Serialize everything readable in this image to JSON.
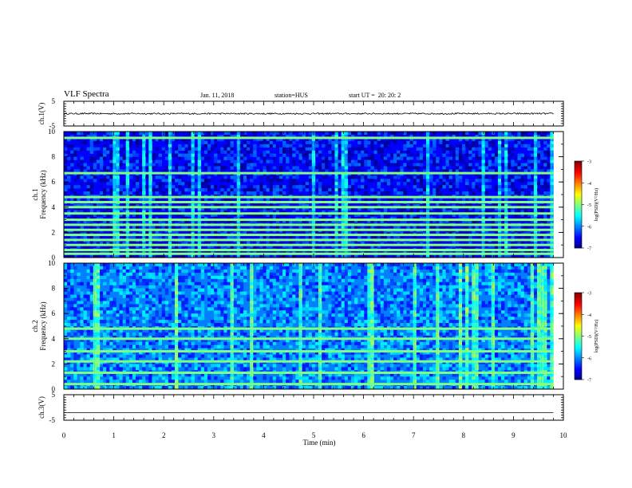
{
  "header": {
    "title": "VLF Spectra",
    "date": "Jan. 11, 2018",
    "station": "station=HUS",
    "start_ut": "start UT =  20: 20: 2"
  },
  "chart_data": [
    {
      "type": "line",
      "panel": "ch.1 voltage",
      "ylabel": "ch.1(V)",
      "ylim": [
        -5,
        5
      ],
      "yticks": [
        5,
        -5
      ],
      "xlim": [
        0,
        10
      ],
      "series": [
        {
          "values_note_level": 0.0,
          "x": [
            0,
            9.8
          ],
          "y": [
            0.0,
            0.0
          ]
        }
      ],
      "trace_amplitude": 0.3
    },
    {
      "type": "heatmap",
      "panel": "ch.1 spectrogram",
      "ylabel": "ch.1 Frequency (kHz)",
      "ylim": [
        0,
        10
      ],
      "yticks": [
        0,
        2,
        4,
        6,
        8,
        10
      ],
      "xlim": [
        0,
        9.8
      ],
      "colorbar": {
        "label": "log(PSD)(V²/Hz)",
        "range": [
          -7,
          -3
        ],
        "ticks": [
          -3,
          -4,
          -5,
          -6,
          -7
        ]
      },
      "strong_bands_khz": [
        0.3,
        0.6,
        1.0,
        1.4,
        1.8,
        2.2,
        2.6,
        3.0,
        3.5,
        4.0,
        4.4,
        4.8,
        6.7,
        9.5
      ],
      "background_log_psd": -6.5
    },
    {
      "type": "heatmap",
      "panel": "ch.2 spectrogram",
      "ylabel": "ch.2 Frequency (kHz)",
      "ylim": [
        0,
        10
      ],
      "yticks": [
        0,
        2,
        4,
        6,
        8,
        10
      ],
      "xlim": [
        0,
        9.8
      ],
      "colorbar": {
        "label": "log(PSD)(V²/Hz)",
        "range": [
          -7,
          -3
        ],
        "ticks": [
          -3,
          -4,
          -5,
          -6,
          -7
        ]
      },
      "strong_bands_khz": [
        0.4,
        1.3,
        2.2,
        3.0,
        4.0,
        4.8
      ],
      "background_log_psd": -6.0
    },
    {
      "type": "line",
      "panel": "ch.3 voltage",
      "ylabel": "ch.3(V)",
      "ylim": [
        -5,
        5
      ],
      "yticks": [
        5,
        -5
      ],
      "xlim": [
        0,
        10
      ],
      "series": [
        {
          "x": [
            0,
            9.8
          ],
          "y": [
            -2.0,
            -2.0
          ]
        }
      ]
    }
  ],
  "xaxis": {
    "label": "Time (min)",
    "ticks": [
      "0",
      "1",
      "2",
      "3",
      "4",
      "5",
      "6",
      "7",
      "8",
      "9",
      "10"
    ]
  },
  "colors": {
    "background": "#000088",
    "trace": "#000000"
  }
}
